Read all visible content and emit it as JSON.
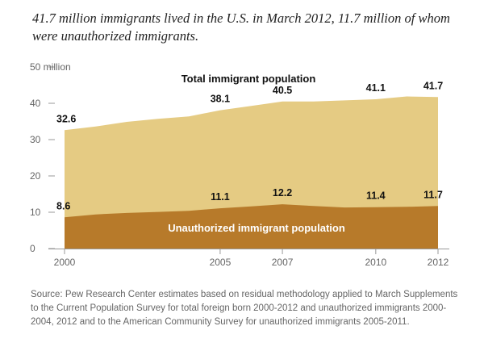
{
  "title": "41.7 million immigrants lived in the U.S. in March 2012, 11.7 million of whom were unauthorized immigrants.",
  "source": "Source: Pew Research Center estimates based on residual methodology applied to March Supplements to the Current Population Survey for total foreign born 2000-2012 and unauthorized immigrants 2000-2004, 2012 and to the American Community Survey for unauthorized immigrants 2005-2011.",
  "colors": {
    "total": "#e5cb83",
    "unauthorized": "#b77a2a",
    "axis": "#999999"
  },
  "chart_data": {
    "type": "area",
    "title": "41.7 million immigrants lived in the U.S. in March 2012, 11.7 million of whom were unauthorized immigrants.",
    "x": [
      2000,
      2001,
      2002,
      2003,
      2004,
      2005,
      2006,
      2007,
      2008,
      2009,
      2010,
      2011,
      2012
    ],
    "series": [
      {
        "name": "Total immigrant population",
        "values": [
          32.6,
          33.6,
          34.9,
          35.7,
          36.4,
          38.1,
          39.3,
          40.5,
          40.5,
          40.8,
          41.1,
          41.9,
          41.7
        ]
      },
      {
        "name": "Unauthorized immigrant population",
        "values": [
          8.6,
          9.4,
          9.8,
          10.1,
          10.4,
          11.1,
          11.6,
          12.2,
          11.7,
          11.3,
          11.4,
          11.5,
          11.7
        ]
      }
    ],
    "data_labels": [
      {
        "series": 0,
        "x": 2000,
        "text": "32.6"
      },
      {
        "series": 0,
        "x": 2005,
        "text": "38.1"
      },
      {
        "series": 0,
        "x": 2007,
        "text": "40.5"
      },
      {
        "series": 0,
        "x": 2010,
        "text": "41.1"
      },
      {
        "series": 0,
        "x": 2012,
        "text": "41.7"
      },
      {
        "series": 1,
        "x": 2000,
        "text": "8.6"
      },
      {
        "series": 1,
        "x": 2005,
        "text": "11.1"
      },
      {
        "series": 1,
        "x": 2007,
        "text": "12.2"
      },
      {
        "series": 1,
        "x": 2010,
        "text": "11.4"
      },
      {
        "series": 1,
        "x": 2012,
        "text": "11.7"
      }
    ],
    "yticks": [
      0,
      10,
      20,
      30,
      40,
      50
    ],
    "ytick_labels": [
      "0",
      "10",
      "20",
      "30",
      "40",
      "50 million"
    ],
    "xticks": [
      2000,
      2005,
      2007,
      2010,
      2012
    ],
    "xtick_labels": [
      "2000",
      "2005",
      "2007",
      "2010",
      "2012"
    ],
    "ylim": [
      0,
      50
    ],
    "xlim": [
      2000,
      2012
    ],
    "xlabel": "",
    "ylabel": "",
    "series_labels": [
      "Total immigrant population",
      "Unauthorized immigrant population"
    ],
    "grid": false
  }
}
